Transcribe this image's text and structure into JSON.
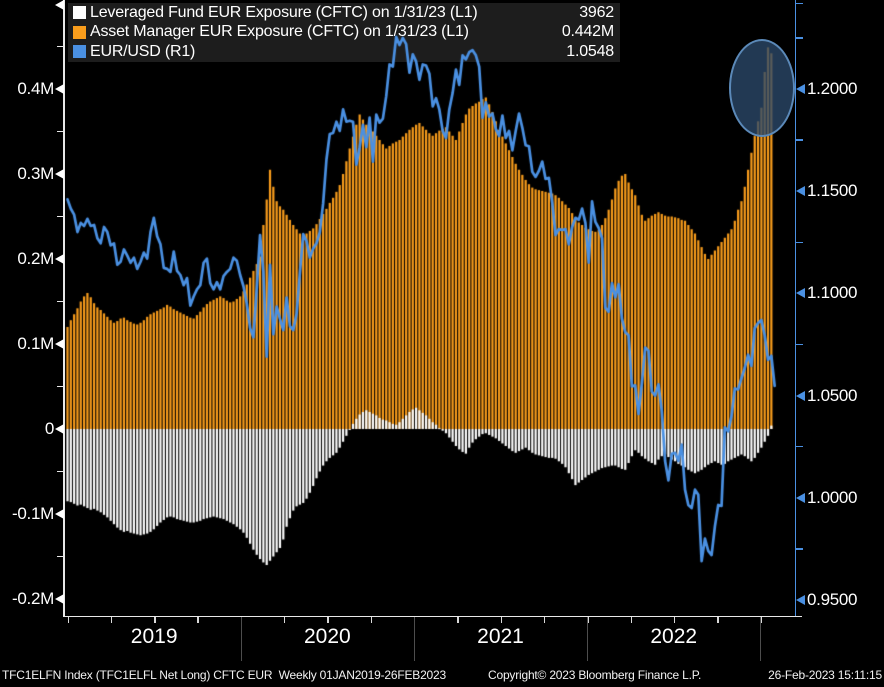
{
  "colors": {
    "background": "#000000",
    "leveraged_fund_bar": "#ffffff",
    "asset_manager_bar": "#f99d1c",
    "eurusd_line": "#4a90e2",
    "right_axis": "#4a90e2",
    "left_axis": "#e8e8e8",
    "legend_bg": "#1d1d1d",
    "year_separator": "#4d4d4d",
    "highlight_fill": "rgba(44,73,106,0.78)",
    "highlight_border": "#5b89b8"
  },
  "legend": {
    "items": [
      {
        "label": "Leveraged Fund EUR Exposure (CFTC) on 1/31/23 (L1)",
        "value": "3962",
        "swatch": "#ffffff"
      },
      {
        "label": "Asset Manager EUR Exposure (CFTC) on 1/31/23 (L1)",
        "value": "0.442M",
        "swatch": "#f99d1c"
      },
      {
        "label": "EUR/USD (R1)",
        "value": "1.0548",
        "swatch": "#4a90e2"
      }
    ]
  },
  "footer": {
    "left": "TFC1ELFN Index (TFC1ELFL Net Long) CFTC EUR  Weekly 01JAN2019-26FEB2023",
    "copyright": "Copyright© 2023 Bloomberg Finance L.P.",
    "timestamp": "26-Feb-2023 15:11:15"
  },
  "chart_data": {
    "type": "bar",
    "subtype": "weekly bars (two CFTC exposure series, left axis, millions of contracts) + EUR/USD line (right axis)",
    "x": {
      "unit": "week",
      "start": "01JAN2019",
      "end": "26FEB2023",
      "years": [
        "2019",
        "2020",
        "2021",
        "2022"
      ],
      "year_start_weeks": [
        52.2,
        104.35,
        156.5,
        208.7
      ],
      "weeks_per_quarter_tick": 13.045
    },
    "left_axis": {
      "applies_to": "CFTC EUR exposure",
      "ticks": [
        {
          "v": 0.4,
          "label": "0.4M"
        },
        {
          "v": 0.3,
          "label": "0.3M"
        },
        {
          "v": 0.2,
          "label": "0.2M"
        },
        {
          "v": 0.1,
          "label": "0.1M"
        },
        {
          "v": 0.0,
          "label": "0"
        },
        {
          "v": -0.1,
          "label": "-0.1M"
        },
        {
          "v": -0.2,
          "label": "-0.2M"
        }
      ],
      "minor_values": [
        0.45,
        0.35,
        0.25,
        0.15,
        0.05,
        -0.05,
        -0.15
      ],
      "range": [
        -0.22,
        0.505
      ]
    },
    "right_axis": {
      "applies_to": "EUR/USD",
      "ticks": [
        {
          "v": 1.2,
          "label": "1.2000"
        },
        {
          "v": 1.15,
          "label": "1.1500"
        },
        {
          "v": 1.1,
          "label": "1.1000"
        },
        {
          "v": 1.05,
          "label": "1.0500"
        },
        {
          "v": 1.0,
          "label": "1.0000"
        },
        {
          "v": 0.95,
          "label": "0.9500"
        }
      ],
      "minor_values": [
        1.225,
        1.175,
        1.125,
        1.075,
        1.025,
        0.975
      ],
      "range": [
        0.942,
        1.2435
      ]
    },
    "series": [
      {
        "id": "asset_manager",
        "name": "Asset Manager EUR Exposure (CFTC)",
        "type": "bar",
        "axis": "L1",
        "color": "#f99d1c",
        "last_value_label": "0.442M",
        "values": [
          0.12,
          0.128,
          0.135,
          0.142,
          0.15,
          0.156,
          0.16,
          0.155,
          0.148,
          0.143,
          0.14,
          0.136,
          0.132,
          0.128,
          0.125,
          0.127,
          0.13,
          0.131,
          0.128,
          0.126,
          0.124,
          0.123,
          0.125,
          0.128,
          0.132,
          0.135,
          0.137,
          0.139,
          0.141,
          0.143,
          0.146,
          0.144,
          0.141,
          0.139,
          0.137,
          0.135,
          0.133,
          0.131,
          0.13,
          0.134,
          0.138,
          0.143,
          0.147,
          0.15,
          0.152,
          0.154,
          0.156,
          0.154,
          0.151,
          0.149,
          0.15,
          0.153,
          0.156,
          0.162,
          0.17,
          0.178,
          0.186,
          0.194,
          0.203,
          0.24,
          0.27,
          0.305,
          0.285,
          0.268,
          0.262,
          0.258,
          0.252,
          0.246,
          0.24,
          0.235,
          0.23,
          0.228,
          0.23,
          0.233,
          0.236,
          0.241,
          0.247,
          0.253,
          0.259,
          0.266,
          0.272,
          0.279,
          0.287,
          0.3,
          0.315,
          0.33,
          0.344,
          0.358,
          0.37,
          0.364,
          0.358,
          0.353,
          0.35,
          0.345,
          0.34,
          0.335,
          0.33,
          0.333,
          0.336,
          0.338,
          0.34,
          0.344,
          0.348,
          0.352,
          0.355,
          0.358,
          0.36,
          0.356,
          0.352,
          0.348,
          0.345,
          0.348,
          0.351,
          0.353,
          0.355,
          0.35,
          0.345,
          0.34,
          0.35,
          0.36,
          0.37,
          0.377,
          0.38,
          0.383,
          0.385,
          0.388,
          0.39,
          0.382,
          0.373,
          0.362,
          0.352,
          0.344,
          0.336,
          0.328,
          0.32,
          0.312,
          0.305,
          0.299,
          0.293,
          0.288,
          0.284,
          0.282,
          0.281,
          0.28,
          0.279,
          0.278,
          0.277,
          0.275,
          0.272,
          0.268,
          0.264,
          0.26,
          0.254,
          0.248,
          0.243,
          0.24,
          0.237,
          0.235,
          0.233,
          0.232,
          0.234,
          0.24,
          0.248,
          0.258,
          0.27,
          0.283,
          0.292,
          0.298,
          0.3,
          0.29,
          0.282,
          0.275,
          0.263,
          0.252,
          0.245,
          0.248,
          0.251,
          0.253,
          0.255,
          0.253,
          0.251,
          0.25,
          0.25,
          0.249,
          0.248,
          0.246,
          0.245,
          0.24,
          0.235,
          0.23,
          0.222,
          0.214,
          0.206,
          0.2,
          0.205,
          0.21,
          0.215,
          0.22,
          0.225,
          0.23,
          0.235,
          0.245,
          0.258,
          0.268,
          0.285,
          0.305,
          0.325,
          0.345,
          0.362,
          0.378,
          0.42,
          0.449,
          0.442
        ]
      },
      {
        "id": "leveraged_fund",
        "name": "Leveraged Fund EUR Exposure (CFTC)",
        "type": "bar",
        "axis": "L1",
        "color": "#ffffff",
        "last_value_label": "3962",
        "values": [
          -0.085,
          -0.086,
          -0.088,
          -0.09,
          -0.089,
          -0.091,
          -0.093,
          -0.095,
          -0.094,
          -0.096,
          -0.098,
          -0.101,
          -0.104,
          -0.108,
          -0.112,
          -0.116,
          -0.119,
          -0.121,
          -0.12,
          -0.122,
          -0.123,
          -0.124,
          -0.125,
          -0.124,
          -0.123,
          -0.121,
          -0.118,
          -0.114,
          -0.11,
          -0.107,
          -0.104,
          -0.103,
          -0.104,
          -0.106,
          -0.107,
          -0.108,
          -0.109,
          -0.11,
          -0.11,
          -0.109,
          -0.108,
          -0.106,
          -0.105,
          -0.104,
          -0.103,
          -0.104,
          -0.105,
          -0.106,
          -0.108,
          -0.11,
          -0.112,
          -0.115,
          -0.118,
          -0.122,
          -0.128,
          -0.135,
          -0.142,
          -0.148,
          -0.153,
          -0.157,
          -0.16,
          -0.155,
          -0.15,
          -0.145,
          -0.14,
          -0.13,
          -0.115,
          -0.105,
          -0.096,
          -0.091,
          -0.089,
          -0.087,
          -0.082,
          -0.075,
          -0.067,
          -0.058,
          -0.05,
          -0.043,
          -0.038,
          -0.034,
          -0.031,
          -0.028,
          -0.022,
          -0.015,
          -0.008,
          -0.001,
          0.006,
          0.012,
          0.017,
          0.02,
          0.022,
          0.02,
          0.018,
          0.016,
          0.013,
          0.011,
          0.01,
          0.008,
          0.006,
          0.005,
          0.008,
          0.012,
          0.016,
          0.02,
          0.023,
          0.025,
          0.022,
          0.019,
          0.016,
          0.012,
          0.008,
          0.005,
          0.001,
          -0.002,
          -0.005,
          -0.01,
          -0.015,
          -0.02,
          -0.024,
          -0.027,
          -0.029,
          -0.022,
          -0.016,
          -0.012,
          -0.009,
          -0.006,
          -0.005,
          -0.007,
          -0.009,
          -0.011,
          -0.014,
          -0.017,
          -0.02,
          -0.023,
          -0.026,
          -0.028,
          -0.026,
          -0.024,
          -0.022,
          -0.025,
          -0.028,
          -0.03,
          -0.031,
          -0.032,
          -0.033,
          -0.034,
          -0.034,
          -0.035,
          -0.038,
          -0.041,
          -0.045,
          -0.052,
          -0.059,
          -0.066,
          -0.063,
          -0.06,
          -0.057,
          -0.054,
          -0.052,
          -0.05,
          -0.048,
          -0.046,
          -0.045,
          -0.044,
          -0.043,
          -0.043,
          -0.045,
          -0.047,
          -0.048,
          -0.04,
          -0.032,
          -0.025,
          -0.028,
          -0.032,
          -0.035,
          -0.038,
          -0.04,
          -0.042,
          -0.036,
          -0.032,
          -0.03,
          -0.033,
          -0.036,
          -0.038,
          -0.041,
          -0.043,
          -0.045,
          -0.048,
          -0.05,
          -0.052,
          -0.05,
          -0.048,
          -0.045,
          -0.042,
          -0.04,
          -0.038,
          -0.04,
          -0.042,
          -0.041,
          -0.038,
          -0.036,
          -0.034,
          -0.032,
          -0.03,
          -0.032,
          -0.035,
          -0.038,
          -0.034,
          -0.028,
          -0.022,
          -0.015,
          -0.008,
          0.004
        ]
      },
      {
        "id": "eurusd",
        "name": "EUR/USD",
        "type": "line",
        "axis": "R1",
        "color": "#4a90e2",
        "last_value_label": "1.0548",
        "values": [
          1.146,
          1.1414,
          1.1385,
          1.13,
          1.1345,
          1.133,
          1.1365,
          1.133,
          1.1335,
          1.127,
          1.1245,
          1.1325,
          1.13,
          1.1235,
          1.1245,
          1.114,
          1.1155,
          1.1215,
          1.1185,
          1.115,
          1.1175,
          1.112,
          1.1155,
          1.12,
          1.117,
          1.13,
          1.137,
          1.128,
          1.124,
          1.1125,
          1.112,
          1.1105,
          1.1205,
          1.111,
          1.109,
          1.104,
          1.1075,
          1.094,
          1.0985,
          1.102,
          1.104,
          1.115,
          1.117,
          1.105,
          1.102,
          1.1055,
          1.102,
          1.1085,
          1.1105,
          1.112,
          1.1175,
          1.116,
          1.109,
          1.1035,
          1.095,
          1.083,
          1.0785,
          1.1025,
          1.1285,
          1.1105,
          1.069,
          1.114,
          1.08,
          1.0935,
          1.0875,
          1.082,
          1.098,
          1.084,
          1.082,
          1.09,
          1.11,
          1.129,
          1.1255,
          1.1175,
          1.122,
          1.1245,
          1.13,
          1.144,
          1.1655,
          1.178,
          1.1785,
          1.184,
          1.1795,
          1.19,
          1.184,
          1.1845,
          1.184,
          1.163,
          1.1715,
          1.1825,
          1.1715,
          1.186,
          1.1645,
          1.1875,
          1.1835,
          1.1855,
          1.1965,
          1.212,
          1.211,
          1.2255,
          1.2215,
          1.225,
          1.222,
          1.208,
          1.217,
          1.2135,
          1.2045,
          1.212,
          1.2115,
          1.2075,
          1.1915,
          1.1955,
          1.19,
          1.1795,
          1.176,
          1.19,
          1.198,
          1.2095,
          1.202,
          1.2165,
          1.2145,
          1.218,
          1.219,
          1.2165,
          1.211,
          1.186,
          1.1935,
          1.1865,
          1.188,
          1.1805,
          1.177,
          1.187,
          1.176,
          1.1795,
          1.17,
          1.1795,
          1.188,
          1.181,
          1.1725,
          1.172,
          1.1595,
          1.157,
          1.16,
          1.1645,
          1.156,
          1.1565,
          1.1445,
          1.1285,
          1.1315,
          1.131,
          1.1315,
          1.124,
          1.1325,
          1.137,
          1.136,
          1.1415,
          1.1345,
          1.115,
          1.145,
          1.135,
          1.132,
          1.127,
          1.093,
          1.091,
          1.105,
          1.098,
          1.1045,
          1.0875,
          1.081,
          1.0795,
          1.0545,
          1.055,
          1.041,
          1.056,
          1.0735,
          1.072,
          1.052,
          1.05,
          1.0555,
          1.0425,
          1.018,
          1.0085,
          1.0215,
          1.022,
          1.018,
          1.026,
          1.004,
          0.9965,
          0.995,
          1.004,
          1.0015,
          0.969,
          0.98,
          0.974,
          0.972,
          0.986,
          0.9965,
          0.996,
          1.0345,
          1.0325,
          1.04,
          1.0535,
          1.053,
          1.0585,
          1.0635,
          1.07,
          1.0645,
          1.083,
          1.0855,
          1.087,
          1.0795,
          1.0675,
          1.0695,
          1.0548
        ]
      }
    ],
    "annotations": [
      {
        "shape": "ellipse",
        "center_week": 209.3,
        "center_value": 0.401,
        "meaning": "highlight circle around the recent surge in asset-manager EUR longs"
      }
    ]
  }
}
